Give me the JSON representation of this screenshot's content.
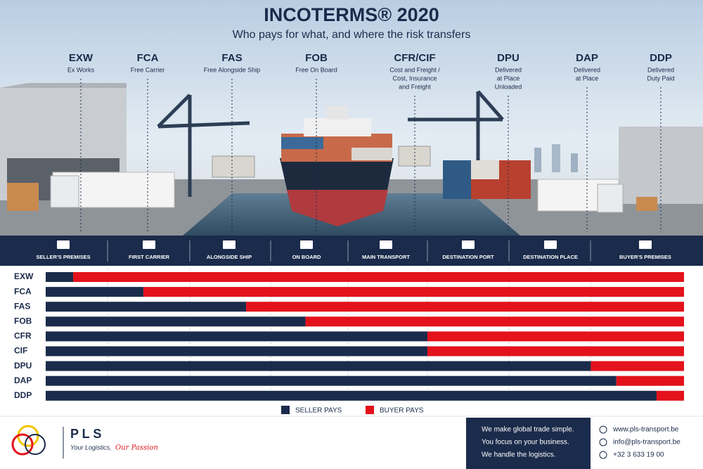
{
  "header": {
    "title": "INCOTERMS® 2020",
    "subtitle": "Who pays for what, and where the risk transfers"
  },
  "terms": [
    {
      "code": "EXW",
      "description": [
        "Ex Works"
      ]
    },
    {
      "code": "FCA",
      "description": [
        "Free Carrier"
      ]
    },
    {
      "code": "FAS",
      "description": [
        "Free Alongside Ship"
      ]
    },
    {
      "code": "FOB",
      "description": [
        "Free On Board"
      ]
    },
    {
      "code": "CFR/CIF",
      "description": [
        "Cost and Freight /",
        "Cost, Insurance",
        "and Freight"
      ]
    },
    {
      "code": "DPU",
      "description": [
        "Delivered",
        "at Place",
        "Unloaded"
      ]
    },
    {
      "code": "DAP",
      "description": [
        "Delivered",
        "at Place"
      ]
    },
    {
      "code": "DDP",
      "description": [
        "Delivered",
        "Duty Paid"
      ]
    }
  ],
  "stages": [
    "SELLER'S PREMISES",
    "FIRST CARRIER",
    "ALONGSIDE SHIP",
    "ON BOARD",
    "MAIN TRANSPORT",
    "DESTINATION PORT",
    "DESTINATION PLACE",
    "BUYER'S PREMISES"
  ],
  "chart_data": {
    "type": "stacked-bar-horizontal",
    "categories": [
      "EXW",
      "FCA",
      "FAS",
      "FOB",
      "CFR",
      "CIF",
      "DPU",
      "DAP",
      "DDP"
    ],
    "xlim": [
      0,
      100
    ],
    "series": [
      {
        "name": "SELLER PAYS",
        "color": "#1b2b4b",
        "values": [
          4.3,
          15.3,
          31.4,
          40.7,
          59.8,
          59.8,
          85.4,
          89.4,
          95.7
        ]
      },
      {
        "name": "BUYER PAYS",
        "color": "#e3121b",
        "values": [
          95.7,
          84.7,
          68.6,
          59.3,
          40.2,
          40.2,
          14.6,
          10.6,
          4.3
        ]
      }
    ]
  },
  "footer": {
    "brand": "P L S",
    "tagline": "Your Logistics,",
    "tagline_accent": "Our Passion",
    "message": [
      "We make global trade simple.",
      "You focus on your business.",
      "We handle the logistics."
    ],
    "contacts": [
      "www.pls-transport.be",
      "info@pls-transport.be",
      "+32 3 633 19 00"
    ]
  }
}
